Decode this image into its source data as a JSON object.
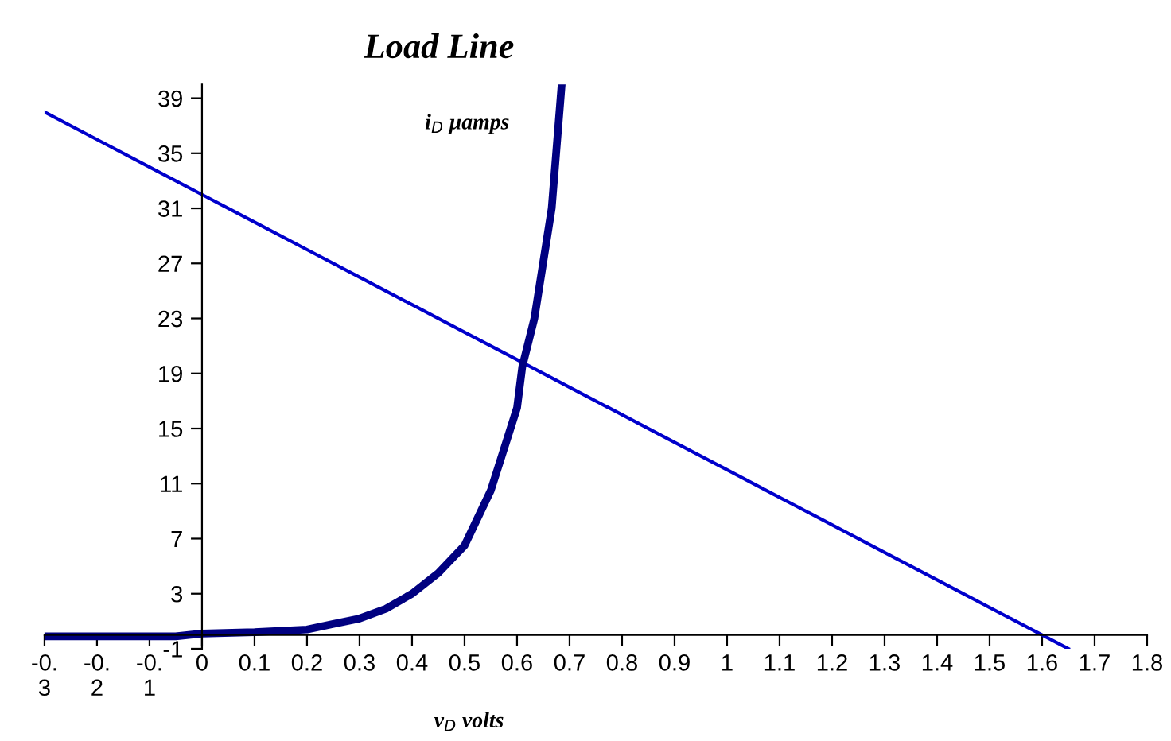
{
  "chart_data": {
    "type": "line",
    "title": "Load Line",
    "xlabel": "v$_{D}$ volts",
    "ylabel": "i$_{D}$ μamps",
    "xlim": [
      -0.3,
      1.8
    ],
    "xticks": [
      {
        "value": -0.3,
        "label": "-0.\n3"
      },
      {
        "value": -0.2,
        "label": "-0.\n2"
      },
      {
        "value": -0.1,
        "label": "-0.\n1"
      },
      0,
      0.1,
      0.2,
      0.3,
      0.4,
      0.5,
      0.6,
      0.7,
      0.8,
      0.9,
      1,
      1.1,
      1.2,
      1.3,
      1.4,
      1.5,
      1.6,
      1.7,
      1.8
    ],
    "ylim": [
      -1,
      40
    ],
    "yticks": [
      -1,
      3,
      7,
      11,
      15,
      19,
      23,
      27,
      31,
      35,
      39
    ],
    "grid": false,
    "legend": false,
    "marker": "none",
    "series": [
      {
        "color": "#0000cc",
        "x": [
          -0.3,
          -0.2,
          -0.1,
          0,
          0.1,
          0.2,
          0.3,
          0.4,
          0.5,
          0.6,
          0.7,
          0.8,
          0.9,
          1.0,
          1.1,
          1.2,
          1.3,
          1.4,
          1.5,
          1.6,
          1.65
        ],
        "values": [
          38,
          36,
          34,
          32,
          30,
          28,
          26,
          24,
          22,
          20,
          18,
          16,
          14,
          12,
          10,
          8,
          6,
          4,
          2,
          0,
          -1
        ]
      },
      {
        "color": "#000080",
        "x": [
          -0.3,
          -0.2,
          -0.1,
          -0.05,
          0,
          0.1,
          0.2,
          0.25,
          0.3,
          0.35,
          0.4,
          0.45,
          0.5,
          0.55,
          0.6,
          0.61,
          0.633,
          0.666,
          0.685
        ],
        "values": [
          -0.1,
          -0.1,
          -0.1,
          -0.1,
          0.1,
          0.2,
          0.4,
          0.8,
          1.2,
          1.9,
          3,
          4.5,
          6.5,
          10.5,
          16.5,
          19.5,
          23,
          31,
          40
        ]
      }
    ]
  }
}
